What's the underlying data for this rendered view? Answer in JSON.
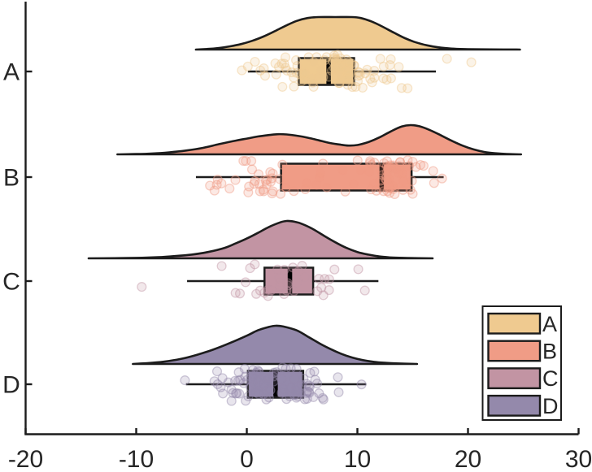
{
  "chart_data": {
    "type": "raincloud (half-violin density + box plot + jittered scatter)",
    "title": "",
    "xlabel": "",
    "ylabel": "",
    "x_axis": {
      "range": [
        -20,
        30
      ],
      "ticks": [
        -20,
        -10,
        0,
        10,
        20,
        30
      ],
      "tick_labels": [
        "-20",
        "-10",
        "0",
        "10",
        "20",
        "30"
      ]
    },
    "y_categories": [
      "A",
      "B",
      "C",
      "D"
    ],
    "grid": "off",
    "legend": {
      "position": "bottom-right",
      "entries": [
        "A",
        "B",
        "C",
        "D"
      ]
    },
    "groups": [
      {
        "label": "A",
        "color": "#EFCA90",
        "box": {
          "whisker_low": 0.1,
          "q1": 4.7,
          "median": 7.4,
          "q3": 9.7,
          "whisker_high": 17.1
        },
        "density": {
          "support": [
            -4.6,
            24.7
          ],
          "points": [
            [
              -4.6,
              0
            ],
            [
              -3.5,
              0.02
            ],
            [
              -2.5,
              0.05
            ],
            [
              -1.5,
              0.1
            ],
            [
              -0.5,
              0.17
            ],
            [
              0.5,
              0.27
            ],
            [
              1.5,
              0.4
            ],
            [
              2.5,
              0.56
            ],
            [
              3.5,
              0.73
            ],
            [
              4.5,
              0.88
            ],
            [
              5.5,
              0.97
            ],
            [
              6.5,
              1.0
            ],
            [
              8.0,
              1.0
            ],
            [
              9.5,
              1.0
            ],
            [
              10.3,
              0.97
            ],
            [
              11.3,
              0.86
            ],
            [
              12.3,
              0.7
            ],
            [
              13.3,
              0.52
            ],
            [
              14.3,
              0.35
            ],
            [
              15.3,
              0.22
            ],
            [
              16.3,
              0.13
            ],
            [
              17.3,
              0.07
            ],
            [
              18.5,
              0.03
            ],
            [
              20.0,
              0.013
            ],
            [
              22.0,
              0.005
            ],
            [
              24.7,
              0
            ]
          ]
        },
        "scatter": {
          "n": 88,
          "seed": 101,
          "clip": [
            -0.8,
            16.6
          ],
          "mixture": [
            {
              "m": 5.2,
              "s": 3.1,
              "w": 0.48
            },
            {
              "m": 9.2,
              "s": 2.6,
              "w": 0.42
            },
            {
              "m": 13.5,
              "s": 1.6,
              "w": 0.1
            }
          ],
          "outliers": [
            18.1,
            20.3
          ]
        }
      },
      {
        "label": "B",
        "color": "#F09C86",
        "box": {
          "whisker_low": -4.6,
          "q1": 3.1,
          "median": 12.2,
          "q3": 14.9,
          "whisker_high": 17.8
        },
        "density": {
          "support": [
            -11.7,
            24.8
          ],
          "points": [
            [
              -11.7,
              0
            ],
            [
              -10.0,
              0.01
            ],
            [
              -8.5,
              0.03
            ],
            [
              -7.0,
              0.07
            ],
            [
              -5.5,
              0.13
            ],
            [
              -4.0,
              0.22
            ],
            [
              -2.5,
              0.35
            ],
            [
              -1.0,
              0.47
            ],
            [
              0.0,
              0.54
            ],
            [
              1.0,
              0.61
            ],
            [
              2.0,
              0.66
            ],
            [
              2.8,
              0.69
            ],
            [
              3.6,
              0.68
            ],
            [
              4.5,
              0.64
            ],
            [
              5.5,
              0.57
            ],
            [
              6.5,
              0.48
            ],
            [
              7.5,
              0.39
            ],
            [
              8.5,
              0.33
            ],
            [
              9.2,
              0.3
            ],
            [
              10.0,
              0.32
            ],
            [
              11.0,
              0.42
            ],
            [
              12.0,
              0.58
            ],
            [
              13.0,
              0.78
            ],
            [
              14.0,
              0.95
            ],
            [
              14.8,
              1.0
            ],
            [
              15.6,
              0.96
            ],
            [
              16.5,
              0.84
            ],
            [
              17.5,
              0.66
            ],
            [
              18.5,
              0.47
            ],
            [
              19.5,
              0.3
            ],
            [
              20.5,
              0.17
            ],
            [
              21.5,
              0.08
            ],
            [
              22.5,
              0.035
            ],
            [
              23.5,
              0.012
            ],
            [
              24.8,
              0
            ]
          ]
        },
        "scatter": {
          "n": 105,
          "seed": 202,
          "clip": [
            -4.8,
            18.0
          ],
          "mixture": [
            {
              "m": 1.6,
              "s": 2.9,
              "w": 0.44
            },
            {
              "m": 13.2,
              "s": 2.0,
              "w": 0.56
            }
          ],
          "outliers": []
        }
      },
      {
        "label": "C",
        "color": "#C294A3",
        "box": {
          "whisker_low": -5.4,
          "q1": 1.6,
          "median": 3.9,
          "q3": 6.0,
          "whisker_high": 11.9
        },
        "density": {
          "support": [
            -14.3,
            16.8
          ],
          "points": [
            [
              -14.3,
              0
            ],
            [
              -12.0,
              0.005
            ],
            [
              -10.0,
              0.012
            ],
            [
              -8.0,
              0.03
            ],
            [
              -6.5,
              0.06
            ],
            [
              -5.0,
              0.1
            ],
            [
              -3.5,
              0.17
            ],
            [
              -2.0,
              0.28
            ],
            [
              -1.0,
              0.4
            ],
            [
              0.0,
              0.53
            ],
            [
              1.0,
              0.68
            ],
            [
              2.0,
              0.84
            ],
            [
              3.0,
              0.96
            ],
            [
              3.6,
              1.0
            ],
            [
              4.3,
              0.98
            ],
            [
              5.0,
              0.92
            ],
            [
              6.0,
              0.78
            ],
            [
              7.0,
              0.6
            ],
            [
              8.0,
              0.43
            ],
            [
              9.0,
              0.28
            ],
            [
              10.0,
              0.17
            ],
            [
              11.0,
              0.1
            ],
            [
              12.0,
              0.05
            ],
            [
              13.0,
              0.025
            ],
            [
              14.5,
              0.01
            ],
            [
              16.8,
              0
            ]
          ]
        },
        "scatter": {
          "n": 38,
          "seed": 303,
          "clip": [
            -6.6,
            12.0
          ],
          "mixture": [
            {
              "m": 3.6,
              "s": 3.2,
              "w": 1.0
            }
          ],
          "outliers": [
            -9.5
          ]
        }
      },
      {
        "label": "D",
        "color": "#9489AB",
        "box": {
          "whisker_low": -5.5,
          "q1": 0.1,
          "median": 2.6,
          "q3": 5.1,
          "whisker_high": 10.8
        },
        "density": {
          "support": [
            -10.3,
            15.4
          ],
          "points": [
            [
              -10.3,
              0
            ],
            [
              -9.0,
              0.02
            ],
            [
              -7.5,
              0.06
            ],
            [
              -6.0,
              0.13
            ],
            [
              -4.5,
              0.24
            ],
            [
              -3.0,
              0.38
            ],
            [
              -1.5,
              0.55
            ],
            [
              0.0,
              0.74
            ],
            [
              1.0,
              0.88
            ],
            [
              2.0,
              0.97
            ],
            [
              2.6,
              1.0
            ],
            [
              3.3,
              0.98
            ],
            [
              4.5,
              0.88
            ],
            [
              5.5,
              0.72
            ],
            [
              6.5,
              0.55
            ],
            [
              7.5,
              0.4
            ],
            [
              8.5,
              0.27
            ],
            [
              9.5,
              0.17
            ],
            [
              10.5,
              0.1
            ],
            [
              11.5,
              0.055
            ],
            [
              12.5,
              0.03
            ],
            [
              13.5,
              0.015
            ],
            [
              15.4,
              0
            ]
          ]
        },
        "scatter": {
          "n": 92,
          "seed": 404,
          "clip": [
            -6.0,
            10.9
          ],
          "mixture": [
            {
              "m": 2.6,
              "s": 3.3,
              "w": 1.0
            }
          ],
          "outliers": []
        }
      }
    ]
  },
  "colors": {
    "background": "#ffffff",
    "ink": "#1c1c1c",
    "text": "#262626",
    "median": "#000000"
  }
}
